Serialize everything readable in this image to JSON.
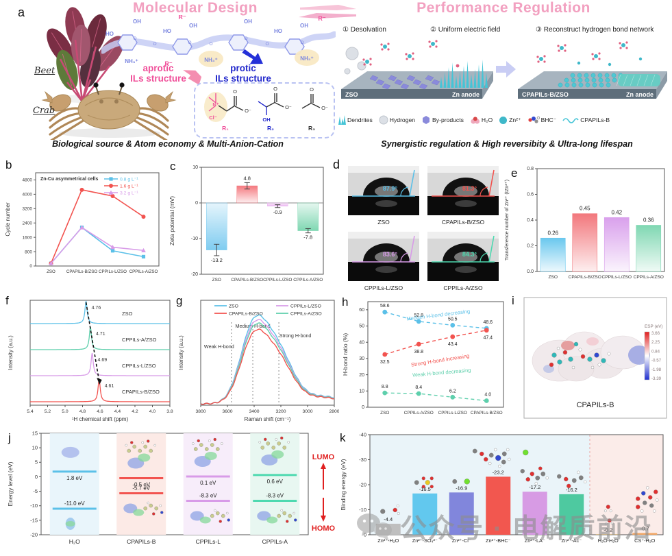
{
  "panel_labels": {
    "a": "a",
    "b": "b",
    "c": "c",
    "d": "d",
    "e": "e",
    "f": "f",
    "g": "g",
    "h": "h",
    "i": "i",
    "j": "j",
    "k": "k"
  },
  "panel_a": {
    "left": {
      "title": "Molecular Design",
      "beet_label": "Beet",
      "crab_label": "Crab",
      "aprotic_line1": "aprotic",
      "aprotic_line2": "ILs structure",
      "protic_line1": "protic",
      "protic_line2": "ILs structure",
      "chem": {
        "oh": "OH",
        "ho": "HO",
        "nh3": "NH₃⁺",
        "r_minus": "R⁻",
        "o": "O",
        "o_minus": "O⁻",
        "n_plus": "N⁺",
        "cl": "Cl⁻"
      },
      "r1": "R₁",
      "r2": "R₂",
      "r3": "R₃",
      "caption": "Biological source & Atom economy & Multi-Anion-Cation"
    },
    "right": {
      "title": "Performance Regulation",
      "steps": [
        "① Desolvation",
        "② Uniform electric field",
        "③ Reconstruct hydrogen bond network"
      ],
      "scene1_substrate": "ZSO",
      "scene1_anode": "Zn anode",
      "scene2_substrate": "CPAPILs-B/ZSO",
      "scene2_anode": "Zn anode",
      "legend": [
        "Dendrites",
        "Hydrogen",
        "By-products",
        "H₂O",
        "Zn²⁺",
        "BHC⁻",
        "CPAPILs-B"
      ],
      "caption": "Synergistic regulation & High reversibity & Ultra-long lifespan"
    }
  },
  "chart_data": [
    {
      "panel": "b",
      "type": "line",
      "title": "Zn-Cu asymmetrical cells",
      "ylabel": "Cycle number",
      "ylim": [
        0,
        5200
      ],
      "yticks": [
        0,
        800,
        1600,
        2400,
        3200,
        4000,
        4800
      ],
      "categories": [
        "ZSO",
        "CPAPILs-B/ZSO",
        "CPPILs-L/ZSO",
        "CPPILs-A/ZSO"
      ],
      "series": [
        {
          "name": "0.8 g L⁻¹",
          "marker": "square",
          "color": "#5BC0E8",
          "values": [
            150,
            2150,
            850,
            520
          ]
        },
        {
          "name": "1.6 g L⁻¹",
          "marker": "circle",
          "color": "#F2534F",
          "values": [
            150,
            4250,
            3900,
            2750
          ]
        },
        {
          "name": "3.2 g L⁻¹",
          "marker": "triangle",
          "color": "#D89BE8",
          "values": [
            150,
            2150,
            1050,
            870
          ]
        }
      ]
    },
    {
      "panel": "c",
      "type": "bar-signed",
      "ylabel": "Zeta potential (mV)",
      "ylim": [
        -20,
        10
      ],
      "yticks": [
        10,
        0,
        -10,
        -20
      ],
      "categories": [
        "ZSO",
        "CPAPILs-B/ZSO",
        "CPPILs-L/ZSO",
        "CPPILs-A/ZSO"
      ],
      "values": [
        -13.2,
        4.8,
        -0.9,
        -7.8
      ],
      "labels": [
        "-13.2",
        "4.8",
        "-0.9",
        "-7.8"
      ],
      "errors": [
        1.6,
        0.9,
        0.4,
        0.6
      ],
      "colors": [
        "#7FCCF0",
        "#F4787E",
        "#EBB4F0",
        "#7FD7B2"
      ]
    },
    {
      "panel": "d",
      "type": "contact-angle",
      "items": [
        {
          "label": "ZSO",
          "angle": "87.9°",
          "color": "#5BC0E8"
        },
        {
          "label": "CPAPILs-B/ZSO",
          "angle": "81.3°",
          "color": "#F2534F"
        },
        {
          "label": "CPPILs-L/ZSO",
          "angle": "83.6°",
          "color": "#D89BE8"
        },
        {
          "label": "CPPILs-A/ZSO",
          "angle": "84.3°",
          "color": "#4ED9B0"
        }
      ]
    },
    {
      "panel": "e",
      "type": "bar-up",
      "ylabel": "Transference number of Zn²⁺ (tZn²⁺)",
      "ylim": [
        0,
        0.8
      ],
      "yticks": [
        "0.0",
        "0.2",
        "0.4",
        "0.6",
        "0.8"
      ],
      "categories": [
        "ZSO",
        "CPAPILs-B/ZSO",
        "CPPILs-L/ZSO",
        "CPPILs-A/ZSO"
      ],
      "values": [
        0.26,
        0.45,
        0.42,
        0.36
      ],
      "labels": [
        "0.26",
        "0.45",
        "0.42",
        "0.36"
      ],
      "colors": [
        "#6AC8EE",
        "#F2777C",
        "#D9A0EC",
        "#7FD7B2"
      ]
    },
    {
      "panel": "f",
      "type": "nmr-stack",
      "xlabel": "¹H chemical shift (ppm)",
      "ylabel": "Intensity (a.u.)",
      "xticks": [
        5.4,
        5.2,
        5.0,
        4.8,
        4.6,
        4.4,
        4.2,
        4.0,
        3.8
      ],
      "traces": [
        {
          "name": "ZSO",
          "peak": 4.76,
          "peak_label": "4.76",
          "color": "#5BC0E8"
        },
        {
          "name": "CPPILs-A/ZSO",
          "peak": 4.71,
          "peak_label": "4.71",
          "color": "#5ECFAC"
        },
        {
          "name": "CPPILs-L/ZSO",
          "peak": 4.69,
          "peak_label": "4.69",
          "color": "#D89BE8"
        },
        {
          "name": "CPAPILs-B/ZSO",
          "peak": 4.61,
          "peak_label": "4.61",
          "color": "#F2534F"
        }
      ]
    },
    {
      "panel": "g",
      "type": "spectra",
      "xlabel": "Raman shift (cm⁻¹)",
      "ylabel": "Intensity (a.u.)",
      "xticks": [
        3800,
        3600,
        3400,
        3200,
        3000,
        2800
      ],
      "series": [
        {
          "name": "ZSO",
          "color": "#5BC0E8",
          "amp": 1.0
        },
        {
          "name": "CPAPILs-B/ZSO",
          "color": "#F2534F",
          "amp": 0.84
        },
        {
          "name": "CPPILs-L/ZSO",
          "color": "#D89BE8",
          "amp": 0.95
        },
        {
          "name": "CPPILs-A/ZSO",
          "color": "#5ECFAC",
          "amp": 0.91
        }
      ],
      "annotations": [
        {
          "text": "Weak H-bond",
          "x": 3570
        },
        {
          "text": "Medium H-bond",
          "x": 3410
        },
        {
          "text": "Strong H-bond",
          "x": 3215
        }
      ]
    },
    {
      "panel": "h",
      "type": "scatter-line",
      "ylabel": "H-bond ratio (%)",
      "ylim": [
        0,
        65
      ],
      "yticks": [
        0,
        10,
        20,
        30,
        40,
        50,
        60
      ],
      "categories": [
        "ZSO",
        "CPPILs-A/ZSO",
        "CPPILs-L/ZSO",
        "CPAPILs-B/ZSO"
      ],
      "series": [
        {
          "name": "Medium H-bond decreasing",
          "color": "#5BC0E8",
          "values": [
            58.6,
            52.8,
            50.5,
            48.6
          ],
          "label_side": "above"
        },
        {
          "name": "Strong H-bond increasing",
          "color": "#F2534F",
          "values": [
            32.5,
            38.8,
            43.4,
            47.4
          ],
          "label_side": "below"
        },
        {
          "name": "Weak H-bond decreasing",
          "color": "#5ECFAC",
          "values": [
            8.8,
            8.4,
            6.2,
            4.0
          ],
          "label_side": "above"
        }
      ]
    },
    {
      "panel": "i",
      "type": "esp-surface",
      "molecule": "CPAPILs-B",
      "scale_title": "ESP (eV)",
      "scale_ticks": [
        "3.66",
        "2.25",
        "0.84",
        "-0.57",
        "-1.98",
        "-3.39"
      ]
    },
    {
      "panel": "j",
      "type": "energy-levels",
      "ylabel": "Energy level (eV)",
      "ylim": [
        -20,
        15
      ],
      "yticks": [
        15,
        10,
        5,
        0,
        -5,
        -10,
        -15,
        -20
      ],
      "lumo_text": "LUMO",
      "homo_text": "HOMO",
      "columns": [
        {
          "name": "H₂O",
          "lumo": 1.8,
          "homo": -11.0,
          "lumo_label": "1.8 eV",
          "homo_label": "-11.0 eV",
          "color": "#5BC0E8",
          "bg": "#E9F5FB"
        },
        {
          "name": "CPAPILs-B",
          "lumo": -0.5,
          "homo": -5.7,
          "lumo_label": "-0.5 eV",
          "homo_label": "-5.7 eV",
          "color": "#F2534F",
          "bg": "#FCEAE6"
        },
        {
          "name": "CPPILs-L",
          "lumo": 0.1,
          "homo": -8.3,
          "lumo_label": "0.1 eV",
          "homo_label": "-8.3 eV",
          "color": "#D89BE8",
          "bg": "#F7EDFA"
        },
        {
          "name": "CPPILs-A",
          "lumo": 0.6,
          "homo": -8.3,
          "lumo_label": "0.6 eV",
          "homo_label": "-8.3 eV",
          "color": "#4ED9B0",
          "bg": "#E8F7F1"
        }
      ]
    },
    {
      "panel": "k",
      "type": "bar-binding",
      "ylabel": "Binding energy (eV)",
      "ylim": [
        0,
        -40
      ],
      "yticks": [
        0,
        -10,
        -20,
        -30,
        -40
      ],
      "categories": [
        "Zn²⁺-H₂O",
        "Zn²⁺-SO₄²⁻",
        "Zn²⁺-Cl⁻",
        "Zn²⁺-BHC⁻",
        "Zn²⁺-LA⁻",
        "Zn²⁺-Ac⁻",
        "H₂O-H₂O",
        "CS⁺-H₂O"
      ],
      "values": [
        -4.4,
        -16.5,
        -16.9,
        -23.2,
        -17.2,
        -16.2,
        -0.2,
        -0.7
      ],
      "labels": [
        "-4.4",
        "-16.5",
        "-16.9",
        "-23.2",
        "-17.2",
        "-16.2",
        "-0.2",
        "-0.7"
      ],
      "colors": [
        "#BFBFBF",
        "#62C8EE",
        "#8186DC",
        "#F2574F",
        "#D79BE4",
        "#4EC9A0",
        "#C8A86A",
        "#F2A868"
      ],
      "split_after": 6
    }
  ],
  "watermark": {
    "icon": "wechat-icon",
    "text": "公众号 · 电解质前沿"
  }
}
